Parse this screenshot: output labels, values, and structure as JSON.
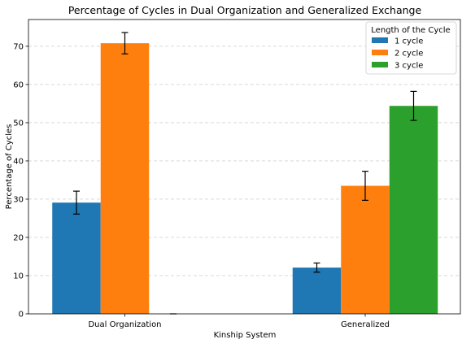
{
  "chart_data": {
    "type": "bar",
    "title": "Percentage of Cycles in Dual Organization and Generalized Exchange",
    "xlabel": "Kinship System",
    "ylabel": "Percentage of Cycles",
    "categories": [
      "Dual Organization",
      "Generalized"
    ],
    "ylim": [
      0,
      77
    ],
    "yticks": [
      0,
      10,
      20,
      30,
      40,
      50,
      60,
      70
    ],
    "grid": "y-dashed",
    "legend": {
      "title": "Length of the Cycle",
      "placement": "top-right"
    },
    "series": [
      {
        "name": "1 cycle",
        "color": "#1f77b4",
        "values": [
          29.1,
          12.1
        ],
        "errors": [
          3.0,
          1.2
        ]
      },
      {
        "name": "2 cycle",
        "color": "#ff7f0e",
        "values": [
          70.8,
          33.5
        ],
        "errors": [
          2.8,
          3.8
        ]
      },
      {
        "name": "3 cycle",
        "color": "#2ca02c",
        "values": [
          0.0,
          54.4
        ],
        "errors": [
          0.0,
          3.8
        ]
      }
    ]
  }
}
